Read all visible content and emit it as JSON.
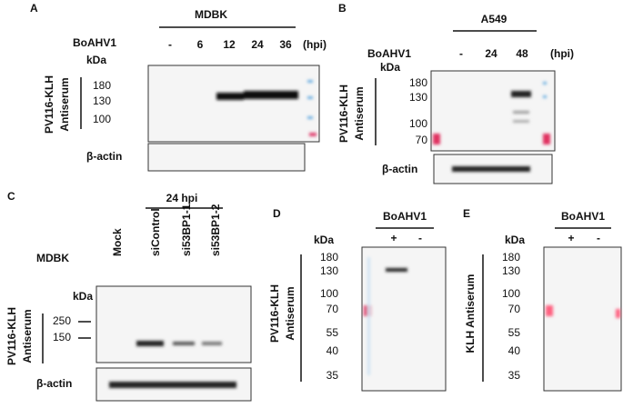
{
  "panels": [
    {
      "letter": "A",
      "cell_line": "MDBK",
      "treatment": "BoAHV1",
      "lanes": [
        "-",
        "6",
        "12",
        "24",
        "36"
      ],
      "unit": "(hpi)",
      "kda": "kDa",
      "markers": [
        "180",
        "130",
        "100"
      ],
      "antibody": [
        "PV116-KLH",
        "Antiserum"
      ],
      "loading": "β-actin"
    },
    {
      "letter": "B",
      "cell_line": "A549",
      "treatment": "BoAHV1",
      "lanes": [
        "-",
        "24",
        "48"
      ],
      "unit": "(hpi)",
      "kda": "kDa",
      "markers": [
        "180",
        "130",
        "100",
        "70"
      ],
      "antibody": [
        "PV116-KLH",
        "Antiserum"
      ],
      "loading": "β-actin"
    },
    {
      "letter": "C",
      "timepoint": "24 hpi",
      "cell_line": "MDBK",
      "lanes": [
        "Mock",
        "siControl",
        "si53BP1-1",
        "si53BP1-2"
      ],
      "kda": "kDa",
      "markers": [
        "250",
        "150"
      ],
      "antibody": [
        "PV116-KLH",
        "Antiserum"
      ],
      "loading": "β-actin"
    },
    {
      "letter": "D",
      "treatment": "BoAHV1",
      "lanes": [
        "+",
        "-"
      ],
      "kda": "kDa",
      "markers": [
        "180",
        "130",
        "100",
        "70",
        "55",
        "40",
        "35"
      ],
      "antibody": [
        "PV116-KLH",
        "Antiserum"
      ]
    },
    {
      "letter": "E",
      "treatment": "BoAHV1",
      "lanes": [
        "+",
        "-"
      ],
      "kda": "kDa",
      "markers": [
        "180",
        "130",
        "100",
        "70",
        "55",
        "40",
        "35"
      ],
      "antibody": [
        "KLH Antiserum"
      ]
    }
  ]
}
